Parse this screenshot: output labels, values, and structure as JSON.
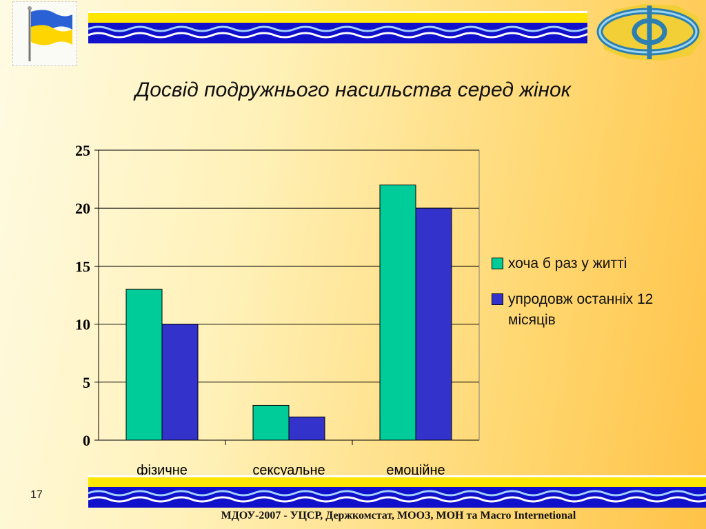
{
  "slide": {
    "title": "Досвід подружнього насильства серед жінок",
    "page_number": "17",
    "footer": "МДОУ-2007 - УЦСР, Держкомстат, МООЗ, МОН та Macro Internetional"
  },
  "colors": {
    "band_yellow": "#ffe600",
    "band_blue": "#1111cc",
    "series1": "#00cc99",
    "series2": "#3333cc"
  },
  "decor": {
    "flag_icon": "ukraine-flag-icon",
    "logo_icon": "organization-logo-icon"
  },
  "chart_data": {
    "type": "bar",
    "title": "Досвід подружнього насильства серед жінок",
    "categories": [
      "фізичне",
      "сексуальне",
      "емоційне"
    ],
    "series": [
      {
        "name": "хоча б раз у житті",
        "values": [
          13,
          3,
          22
        ]
      },
      {
        "name": "упродовж останніх 12 місяців",
        "values": [
          10,
          2,
          20
        ]
      }
    ],
    "ylim": [
      0,
      25
    ],
    "yticks": [
      0,
      5,
      10,
      15,
      20,
      25
    ],
    "grid": true,
    "legend": "right"
  }
}
